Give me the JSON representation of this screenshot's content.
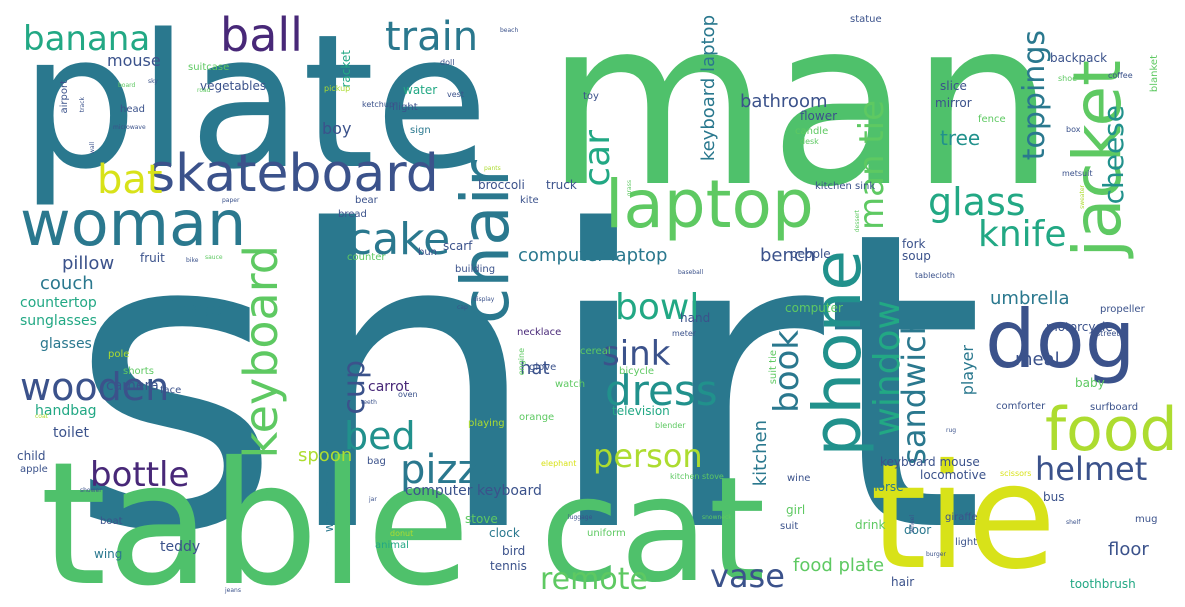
{
  "palette": {
    "dark_teal": "#2a788e",
    "blue": "#3b528b",
    "purple": "#482878",
    "teal": "#21918c",
    "green": "#22a884",
    "light_green": "#5ec962",
    "lime": "#addc30",
    "yellow": "#d8e219"
  },
  "words": [
    {
      "text": "shirt",
      "color": "#2a788e"
    },
    {
      "text": "man",
      "color": "#4fc16b"
    },
    {
      "text": "plate",
      "color": "#2a788e"
    },
    {
      "text": "table",
      "color": "#4fc16b"
    },
    {
      "text": "cat",
      "color": "#4fc16b"
    },
    {
      "text": "tie",
      "color": "#d8e219"
    },
    {
      "text": "woman",
      "color": "#2a788e"
    },
    {
      "text": "laptop",
      "color": "#5ec962"
    },
    {
      "text": "jacket",
      "color": "#5ec962"
    },
    {
      "text": "dog",
      "color": "#3b528b"
    },
    {
      "text": "phone",
      "color": "#21918c"
    },
    {
      "text": "chair",
      "color": "#2a788e"
    },
    {
      "text": "food",
      "color": "#addc30"
    },
    {
      "text": "skateboard",
      "color": "#3b528b"
    },
    {
      "text": "keyboard",
      "color": "#5ec962"
    },
    {
      "text": "ball",
      "color": "#482878"
    },
    {
      "text": "train",
      "color": "#2a788e"
    },
    {
      "text": "banana",
      "color": "#22a884"
    },
    {
      "text": "bat",
      "color": "#d8e219"
    },
    {
      "text": "cake",
      "color": "#2a788e"
    },
    {
      "text": "wooden",
      "color": "#3b528b"
    },
    {
      "text": "pizza",
      "color": "#2a788e"
    },
    {
      "text": "dress",
      "color": "#21918c"
    },
    {
      "text": "bed",
      "color": "#21918c"
    },
    {
      "text": "bottle",
      "color": "#482878"
    },
    {
      "text": "person",
      "color": "#addc30"
    },
    {
      "text": "remote",
      "color": "#5ec962"
    },
    {
      "text": "vase",
      "color": "#3b528b"
    },
    {
      "text": "helmet",
      "color": "#3b528b"
    },
    {
      "text": "glass",
      "color": "#22a884"
    },
    {
      "text": "knife",
      "color": "#22a884"
    },
    {
      "text": "bowl",
      "color": "#22a884"
    },
    {
      "text": "sink",
      "color": "#3b528b"
    },
    {
      "text": "window",
      "color": "#22a884"
    },
    {
      "text": "sandwich",
      "color": "#2a788e"
    },
    {
      "text": "book",
      "color": "#2a788e"
    },
    {
      "text": "man tie",
      "color": "#5ec962"
    },
    {
      "text": "toppings",
      "color": "#2a788e"
    },
    {
      "text": "cheese",
      "color": "#21918c"
    },
    {
      "text": "car",
      "color": "#22a884"
    },
    {
      "text": "cup",
      "color": "#3b528b"
    },
    {
      "text": "keyboard laptop",
      "color": "#2a788e"
    },
    {
      "text": "bathroom",
      "color": "#3b528b"
    },
    {
      "text": "computer laptop",
      "color": "#2a788e"
    },
    {
      "text": "bench",
      "color": "#3b528b"
    },
    {
      "text": "frisbee",
      "color": "#2a788e"
    },
    {
      "text": "couch",
      "color": "#2a788e"
    },
    {
      "text": "pillow",
      "color": "#3b528b"
    },
    {
      "text": "umbrella",
      "color": "#2a788e"
    },
    {
      "text": "tree",
      "color": "#21918c"
    },
    {
      "text": "player",
      "color": "#2a788e"
    },
    {
      "text": "meal",
      "color": "#3b528b"
    },
    {
      "text": "hat",
      "color": "#3b528b"
    },
    {
      "text": "spoon",
      "color": "#addc30"
    },
    {
      "text": "floor",
      "color": "#3b528b"
    },
    {
      "text": "food plate",
      "color": "#5ec962"
    },
    {
      "text": "kitchen",
      "color": "#2a788e"
    },
    {
      "text": "boy",
      "color": "#3b528b"
    },
    {
      "text": "mouse",
      "color": "#3b528b"
    },
    {
      "text": "sunglasses",
      "color": "#22a884"
    },
    {
      "text": "countertop",
      "color": "#22a884"
    },
    {
      "text": "glasses",
      "color": "#2a788e"
    },
    {
      "text": "teddy",
      "color": "#3b528b"
    },
    {
      "text": "toilet",
      "color": "#3b528b"
    },
    {
      "text": "handbag",
      "color": "#22a884"
    },
    {
      "text": "camera",
      "color": "#3b528b"
    },
    {
      "text": "carrot",
      "color": "#482878"
    },
    {
      "text": "broccoli",
      "color": "#3b528b"
    },
    {
      "text": "truck",
      "color": "#3b528b"
    },
    {
      "text": "computer keyboard",
      "color": "#3b528b"
    },
    {
      "text": "television",
      "color": "#22a884"
    },
    {
      "text": "keyboard mouse",
      "color": "#3b528b"
    },
    {
      "text": "locomotive",
      "color": "#3b528b"
    },
    {
      "text": "motorcycle",
      "color": "#3b528b"
    },
    {
      "text": "fork",
      "color": "#3b528b"
    },
    {
      "text": "soup",
      "color": "#3b528b"
    },
    {
      "text": "people",
      "color": "#3b528b"
    },
    {
      "text": "computer",
      "color": "#5ec962"
    },
    {
      "text": "horse",
      "color": "#2a788e"
    },
    {
      "text": "bus",
      "color": "#3b528b"
    },
    {
      "text": "girl",
      "color": "#5ec962"
    },
    {
      "text": "door",
      "color": "#2a788e"
    },
    {
      "text": "drink",
      "color": "#5ec962"
    },
    {
      "text": "baby",
      "color": "#5ec962"
    },
    {
      "text": "wood",
      "color": "#2a788e"
    },
    {
      "text": "stove",
      "color": "#5ec962"
    },
    {
      "text": "clock",
      "color": "#2a788e"
    },
    {
      "text": "bird",
      "color": "#3b528b"
    },
    {
      "text": "tennis",
      "color": "#3b528b"
    },
    {
      "text": "toothbrush",
      "color": "#22a884"
    },
    {
      "text": "hair",
      "color": "#3b528b"
    },
    {
      "text": "wing",
      "color": "#2a788e"
    },
    {
      "text": "boat",
      "color": "#3b528b"
    },
    {
      "text": "child",
      "color": "#3b528b"
    },
    {
      "text": "apple",
      "color": "#3b528b"
    },
    {
      "text": "vegetables",
      "color": "#3b528b"
    },
    {
      "text": "suitcase",
      "color": "#5ec962"
    },
    {
      "text": "racket",
      "color": "#22a884"
    },
    {
      "text": "water",
      "color": "#22a884"
    },
    {
      "text": "mirror",
      "color": "#3b528b"
    },
    {
      "text": "flower",
      "color": "#3b528b"
    },
    {
      "text": "slice",
      "color": "#3b528b"
    },
    {
      "text": "backpack",
      "color": "#3b528b"
    },
    {
      "text": "statue",
      "color": "#3b528b"
    },
    {
      "text": "toy",
      "color": "#3b528b"
    },
    {
      "text": "fence",
      "color": "#5ec962"
    },
    {
      "text": "shoe",
      "color": "#5ec962"
    },
    {
      "text": "blanket",
      "color": "#5ec962"
    },
    {
      "text": "kitchen sink",
      "color": "#3b528b"
    },
    {
      "text": "tablecloth",
      "color": "#3b528b"
    },
    {
      "text": "scarf",
      "color": "#3b528b"
    },
    {
      "text": "hand",
      "color": "#3b528b"
    },
    {
      "text": "bun",
      "color": "#3b528b"
    },
    {
      "text": "counter",
      "color": "#5ec962"
    },
    {
      "text": "bear",
      "color": "#3b528b"
    },
    {
      "text": "bread",
      "color": "#3b528b"
    },
    {
      "text": "kite",
      "color": "#3b528b"
    },
    {
      "text": "building",
      "color": "#3b528b"
    },
    {
      "text": "fruit",
      "color": "#3b528b"
    },
    {
      "text": "pole",
      "color": "#addc30"
    },
    {
      "text": "shorts",
      "color": "#5ec962"
    },
    {
      "text": "face",
      "color": "#3b528b"
    },
    {
      "text": "necklace",
      "color": "#482878"
    },
    {
      "text": "glove",
      "color": "#3b528b"
    },
    {
      "text": "cereal",
      "color": "#5ec962"
    },
    {
      "text": "watch",
      "color": "#5ec962"
    },
    {
      "text": "orange",
      "color": "#5ec962"
    },
    {
      "text": "playing",
      "color": "#addc30"
    },
    {
      "text": "blender",
      "color": "#5ec962"
    },
    {
      "text": "bag",
      "color": "#3b528b"
    },
    {
      "text": "elephant",
      "color": "#d8e219"
    },
    {
      "text": "kitchen stove",
      "color": "#5ec962"
    },
    {
      "text": "scissors",
      "color": "#d8e219"
    },
    {
      "text": "comforter",
      "color": "#3b528b"
    },
    {
      "text": "surfboard",
      "color": "#3b528b"
    },
    {
      "text": "mug",
      "color": "#3b528b"
    },
    {
      "text": "giraffe",
      "color": "#3b528b"
    },
    {
      "text": "suit",
      "color": "#3b528b"
    },
    {
      "text": "light",
      "color": "#3b528b"
    },
    {
      "text": "uniform",
      "color": "#5ec962"
    },
    {
      "text": "animal",
      "color": "#22a884"
    },
    {
      "text": "propeller",
      "color": "#3b528b"
    },
    {
      "text": "suit tie",
      "color": "#5ec962"
    },
    {
      "text": "wine",
      "color": "#3b528b"
    },
    {
      "text": "sign",
      "color": "#2a788e"
    },
    {
      "text": "flight",
      "color": "#3b528b"
    },
    {
      "text": "ketchup",
      "color": "#3b528b"
    },
    {
      "text": "vest",
      "color": "#3b528b"
    },
    {
      "text": "doll",
      "color": "#3b528b"
    },
    {
      "text": "pickup",
      "color": "#addc30"
    },
    {
      "text": "head",
      "color": "#3b528b"
    },
    {
      "text": "airport",
      "color": "#3b528b"
    },
    {
      "text": "coffee",
      "color": "#3b528b"
    },
    {
      "text": "candle",
      "color": "#5ec962"
    },
    {
      "text": "desk",
      "color": "#5ec962"
    },
    {
      "text": "box",
      "color": "#3b528b"
    },
    {
      "text": "bicycle",
      "color": "#5ec962"
    },
    {
      "text": "engine",
      "color": "#5ec962"
    },
    {
      "text": "meter",
      "color": "#3b528b"
    },
    {
      "text": "street",
      "color": "#3b528b"
    },
    {
      "text": "metsuit",
      "color": "#3b528b"
    },
    {
      "text": "dessert",
      "color": "#5ec962"
    },
    {
      "text": "baseball",
      "color": "#3b528b"
    },
    {
      "text": "oven",
      "color": "#3b528b"
    },
    {
      "text": "teeth",
      "color": "#3b528b"
    },
    {
      "text": "luggage",
      "color": "#3b528b"
    },
    {
      "text": "donut",
      "color": "#addc30"
    },
    {
      "text": "snowneck",
      "color": "#5ec962"
    },
    {
      "text": "wheel",
      "color": "#3b528b"
    },
    {
      "text": "burger",
      "color": "#3b528b"
    },
    {
      "text": "shelf",
      "color": "#3b528b"
    },
    {
      "text": "shower",
      "color": "#3b528b"
    },
    {
      "text": "coat",
      "color": "#addc30"
    },
    {
      "text": "jeans",
      "color": "#3b528b"
    },
    {
      "text": "paper",
      "color": "#3b528b"
    },
    {
      "text": "road",
      "color": "#5ec962"
    },
    {
      "text": "board",
      "color": "#5ec962"
    },
    {
      "text": "track",
      "color": "#3b528b"
    },
    {
      "text": "microwave",
      "color": "#3b528b"
    },
    {
      "text": "wall",
      "color": "#3b528b"
    },
    {
      "text": "sauce",
      "color": "#5ec962"
    },
    {
      "text": "bike",
      "color": "#3b528b"
    },
    {
      "text": "sky",
      "color": "#3b528b"
    },
    {
      "text": "grass",
      "color": "#5ec962"
    },
    {
      "text": "pants",
      "color": "#addc30"
    },
    {
      "text": "display",
      "color": "#3b528b"
    },
    {
      "text": "cap",
      "color": "#3b528b"
    },
    {
      "text": "sweater",
      "color": "#addc30"
    },
    {
      "text": "rug",
      "color": "#3b528b"
    },
    {
      "text": "jar",
      "color": "#3b528b"
    },
    {
      "text": "beach",
      "color": "#3b528b"
    },
    {
      "text": "bat2",
      "color": "#3b528b"
    }
  ]
}
